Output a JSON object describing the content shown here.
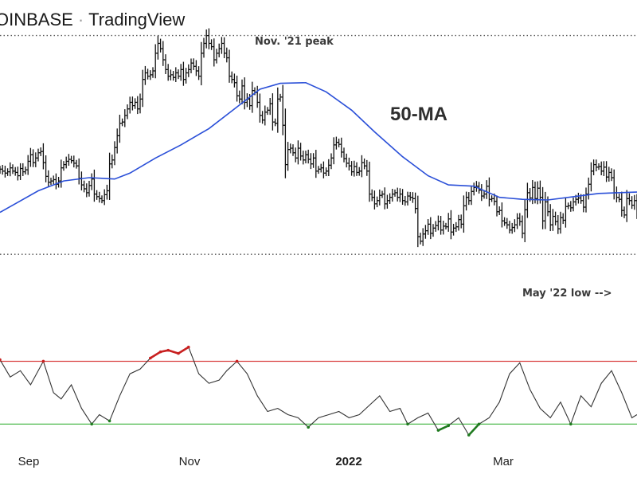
{
  "header": {
    "source": "OINBASE",
    "separator": "·",
    "brand": "TradingView"
  },
  "annotations": {
    "peak_label": "Nov. '21 peak",
    "low_label": "May '22 low -->",
    "ma_label": "50-MA"
  },
  "colors": {
    "candle": "#111111",
    "ma": "#2a4fd8",
    "rsi_line": "#333333",
    "overbought": "#d94040",
    "oversold": "#3bb33b",
    "rsi_hot": "#c82020",
    "rsi_cold": "#1f7a1f",
    "guide": "#555555"
  },
  "chart_data": [
    {
      "type": "ohlc",
      "x_range": [
        "2021-08-16",
        "2022-04-23"
      ],
      "y_range": [
        30300,
        70800
      ],
      "levels": {
        "nov_21_peak": 67200,
        "may_22_low": 33800
      },
      "ohlc_series": {
        "start": "2021-08-16",
        "closes": [
          46800,
          46500,
          46200,
          46400,
          47000,
          46500,
          46300,
          45800,
          46900,
          46400,
          46700,
          48000,
          49000,
          47800,
          48500,
          49300,
          49500,
          47800,
          45700,
          44800,
          45000,
          45200,
          44500,
          45000,
          47000,
          47500,
          48000,
          48300,
          48100,
          47700,
          47300,
          45400,
          44400,
          43800,
          43200,
          44300,
          45300,
          43000,
          42600,
          42300,
          42000,
          42900,
          43500,
          47600,
          48200,
          50100,
          51900,
          53800,
          54000,
          55000,
          56000,
          57000,
          56500,
          57000,
          56000,
          57500,
          60500,
          61500,
          61000,
          61200,
          61800,
          64500,
          66000,
          65200,
          63500,
          62000,
          61000,
          61200,
          60800,
          61500,
          61000,
          62000,
          60500,
          61500,
          62000,
          63000,
          62500,
          61800,
          61000,
          64500,
          66000,
          67200,
          66000,
          65500,
          63500,
          64500,
          65200,
          66000,
          64500,
          63800,
          61000,
          60500,
          60000,
          58000,
          57500,
          59500,
          57000,
          57500,
          56500,
          58800,
          58500,
          57000,
          55000,
          54300,
          55500,
          55800,
          56800,
          54000,
          53800,
          57500,
          57800,
          53500,
          47500,
          49800,
          50000,
          49300,
          48500,
          50000,
          48800,
          48200,
          49000,
          48300,
          47600,
          48500,
          46500,
          46800,
          47000,
          46200,
          46500,
          47400,
          48500,
          50500,
          50900,
          50600,
          49400,
          48400,
          47700,
          47300,
          46400,
          47200,
          46300,
          46500,
          47800,
          47300,
          46500,
          43000,
          42500,
          41500,
          42000,
          42800,
          43000,
          41500,
          42000,
          42500,
          43000,
          43200,
          42500,
          43000,
          42000,
          41800,
          42700,
          42500,
          42300,
          40800,
          36500,
          35800,
          36900,
          37400,
          38400,
          37000,
          37800,
          38200,
          38800,
          37500,
          38100,
          38000,
          39200,
          37200,
          37800,
          38000,
          39100,
          38400,
          41200,
          42500,
          42000,
          43400,
          44000,
          44200,
          43600,
          42700,
          43000,
          44200,
          42200,
          42300,
          41900,
          40300,
          40500,
          38900,
          38600,
          38300,
          37500,
          37900,
          38300,
          39300,
          38800,
          37000,
          40600,
          43200,
          42400,
          44000,
          42300,
          43900,
          42500,
          38900,
          41800,
          40300,
          38300,
          39600,
          38800,
          37700,
          39400,
          39000,
          41100,
          41200,
          40900,
          41800,
          42200,
          42400,
          42000,
          41000,
          43000,
          44500,
          46500,
          47500,
          47100,
          47200,
          46500,
          47100,
          45600,
          46300,
          45500,
          43200,
          42500,
          42200,
          40500,
          39800,
          42300,
          42000,
          41300,
          42000,
          40000,
          39900,
          40400,
          40700,
          41500
        ]
      },
      "moving_average": {
        "name": "50-MA",
        "dates": [
          "2021-08-16",
          "2021-08-31",
          "2021-09-10",
          "2021-09-20",
          "2021-09-30",
          "2021-10-06",
          "2021-10-16",
          "2021-10-26",
          "2021-11-06",
          "2021-11-16",
          "2021-11-26",
          "2021-12-04",
          "2021-12-14",
          "2021-12-22",
          "2022-01-01",
          "2022-01-10",
          "2022-01-21",
          "2022-01-31",
          "2022-02-08",
          "2022-02-18",
          "2022-02-28",
          "2022-03-09",
          "2022-03-19",
          "2022-03-29",
          "2022-04-08",
          "2022-04-23"
        ],
        "values": [
          40200,
          43500,
          45000,
          45500,
          45300,
          46200,
          48500,
          50500,
          53000,
          56000,
          59000,
          59900,
          60000,
          58600,
          55800,
          52500,
          48700,
          45800,
          44400,
          44200,
          42500,
          42200,
          42100,
          42600,
          43100,
          43300
        ]
      }
    },
    {
      "type": "line",
      "name": "RSI",
      "y_range": [
        20,
        88
      ],
      "overbought": 70,
      "oversold": 30,
      "x_ticks": [
        "Sep",
        "Nov",
        "2022",
        "Mar"
      ],
      "dates": [
        "2021-08-16",
        "2021-08-20",
        "2021-08-24",
        "2021-08-28",
        "2021-09-02",
        "2021-09-06",
        "2021-09-09",
        "2021-09-13",
        "2021-09-17",
        "2021-09-21",
        "2021-09-24",
        "2021-09-28",
        "2021-10-02",
        "2021-10-06",
        "2021-10-10",
        "2021-10-14",
        "2021-10-18",
        "2021-10-21",
        "2021-10-25",
        "2021-10-29",
        "2021-11-02",
        "2021-11-06",
        "2021-11-10",
        "2021-11-13",
        "2021-11-17",
        "2021-11-21",
        "2021-11-25",
        "2021-11-29",
        "2021-12-03",
        "2021-12-07",
        "2021-12-11",
        "2021-12-15",
        "2021-12-19",
        "2021-12-23",
        "2021-12-27",
        "2021-12-31",
        "2022-01-04",
        "2022-01-08",
        "2022-01-12",
        "2022-01-16",
        "2022-01-20",
        "2022-01-23",
        "2022-01-27",
        "2022-01-31",
        "2022-02-04",
        "2022-02-08",
        "2022-02-12",
        "2022-02-16",
        "2022-02-20",
        "2022-02-24",
        "2022-02-28",
        "2022-03-04",
        "2022-03-08",
        "2022-03-12",
        "2022-03-16",
        "2022-03-20",
        "2022-03-24",
        "2022-03-28",
        "2022-04-01",
        "2022-04-05",
        "2022-04-09",
        "2022-04-13",
        "2022-04-17",
        "2022-04-21",
        "2022-04-23"
      ],
      "values": [
        71,
        60,
        64,
        55,
        70,
        50,
        46,
        55,
        40,
        30,
        36,
        32,
        48,
        62,
        65,
        72,
        76,
        77,
        75,
        79,
        62,
        56,
        58,
        64,
        70,
        62,
        48,
        38,
        40,
        36,
        34,
        28,
        34,
        36,
        38,
        34,
        36,
        42,
        48,
        38,
        40,
        30,
        34,
        37,
        26,
        29,
        34,
        23,
        30,
        34,
        44,
        62,
        69,
        52,
        40,
        34,
        44,
        30,
        48,
        41,
        56,
        64,
        50,
        34,
        36
      ]
    }
  ]
}
